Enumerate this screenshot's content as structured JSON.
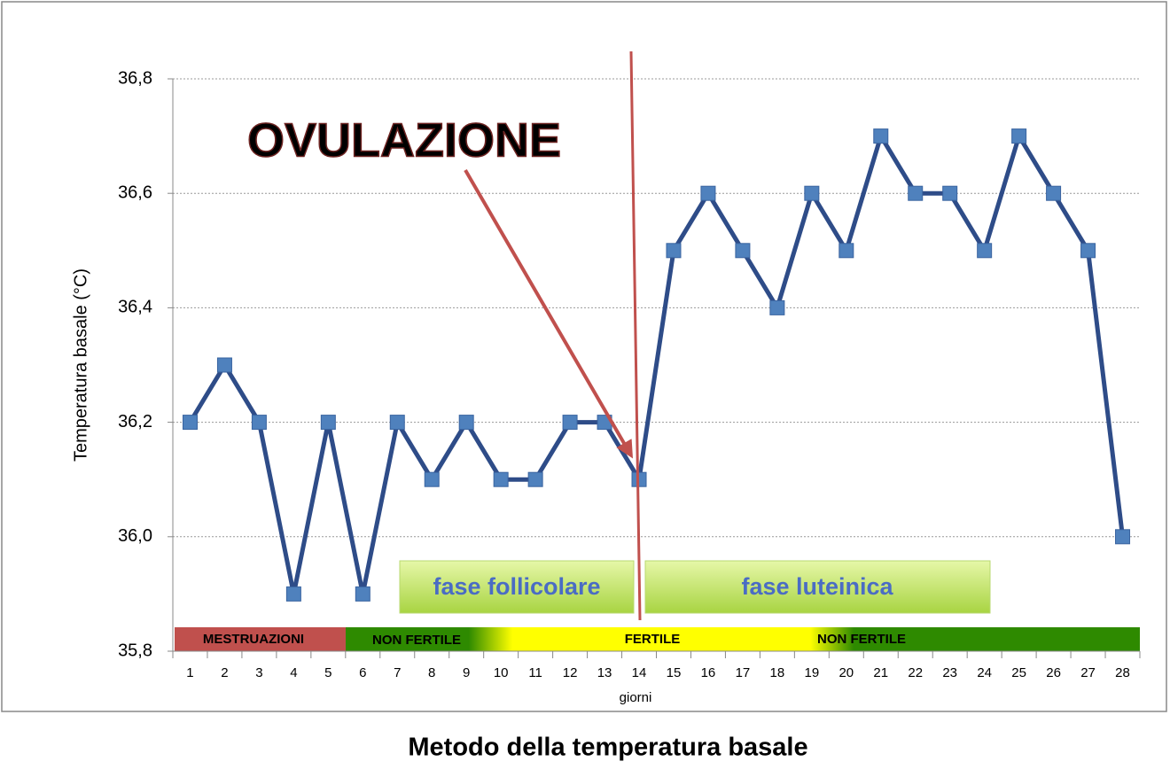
{
  "chart_data": {
    "type": "line",
    "title": "Metodo della temperatura basale",
    "x_label": "giorni",
    "y_label": "Temperatura basale (°C)",
    "categories": [
      "1",
      "2",
      "3",
      "4",
      "5",
      "6",
      "7",
      "8",
      "9",
      "10",
      "11",
      "12",
      "13",
      "14",
      "15",
      "16",
      "17",
      "18",
      "19",
      "20",
      "21",
      "22",
      "23",
      "24",
      "25",
      "26",
      "27",
      "28"
    ],
    "values": [
      36.2,
      36.3,
      36.2,
      35.9,
      36.2,
      35.9,
      36.2,
      36.1,
      36.2,
      36.1,
      36.1,
      36.2,
      36.2,
      36.1,
      36.5,
      36.6,
      36.5,
      36.4,
      36.6,
      36.5,
      36.7,
      36.6,
      36.6,
      36.5,
      36.7,
      36.6,
      36.5,
      36.0
    ],
    "color": "#2e4c88",
    "marker_color": "#4f81bd",
    "ylim": [
      35.8,
      36.8
    ],
    "yticks": [
      {
        "value": 35.8,
        "label": "35,8"
      },
      {
        "value": 36.0,
        "label": "36,0"
      },
      {
        "value": 36.2,
        "label": "36,2"
      },
      {
        "value": 36.4,
        "label": "36,4"
      },
      {
        "value": 36.6,
        "label": "36,6"
      },
      {
        "value": 36.8,
        "label": "36,8"
      }
    ],
    "grid": true,
    "annotations": {
      "ovulation": "OVULAZIONE",
      "follicular": "fase follicolare",
      "luteal": "fase luteinica",
      "phases": [
        "MESTRUAZIONI",
        "NON FERTILE",
        "FERTILE",
        "NON FERTILE"
      ]
    }
  }
}
